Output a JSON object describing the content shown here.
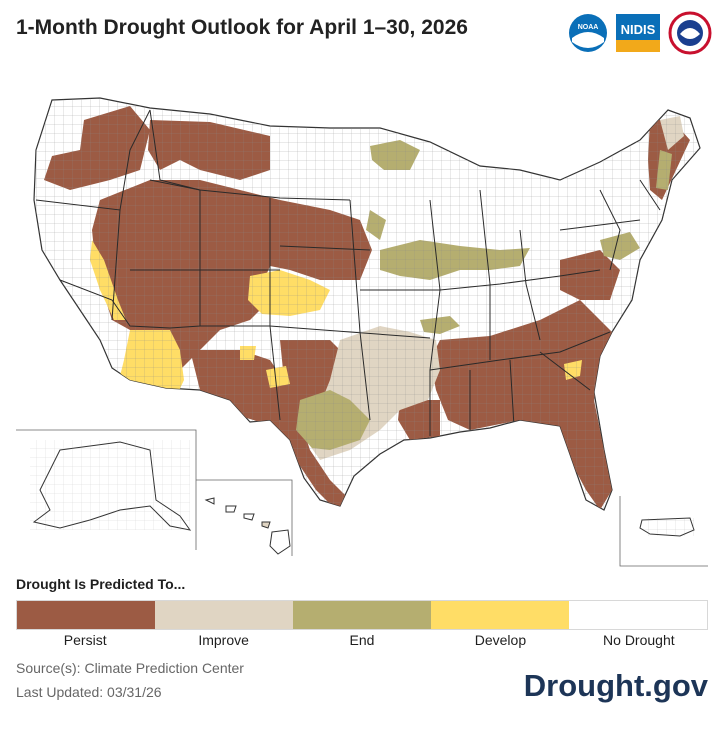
{
  "title": "1-Month Drought Outlook for April 1–30, 2026",
  "logos": {
    "noaa": "NOAA",
    "nidis": "NIDIS",
    "nws_icon": "national-weather-service-icon"
  },
  "legend": {
    "title": "Drought Is Predicted To...",
    "categories": [
      {
        "label": "Persist",
        "color": "#9c5b44"
      },
      {
        "label": "Improve",
        "color": "#e0d5c3"
      },
      {
        "label": "End",
        "color": "#b5ae70"
      },
      {
        "label": "Develop",
        "color": "#ffdd66"
      },
      {
        "label": "No Drought",
        "color": "#ffffff"
      }
    ]
  },
  "source": "Source(s): Climate Prediction Center",
  "updated": "Last Updated: 03/31/26",
  "brand": "Drought.gov"
}
